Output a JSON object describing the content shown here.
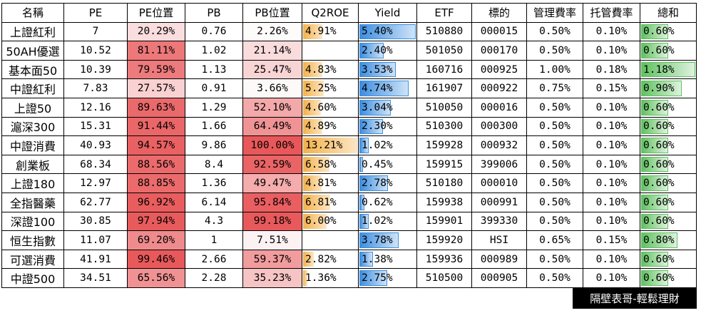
{
  "headers": [
    "名稱",
    "PE",
    "PE位置",
    "PB",
    "PB位置",
    "Q2ROE",
    "Yield",
    "ETF",
    "標的",
    "管理費率",
    "托管費率",
    "總和"
  ],
  "rows": [
    {
      "name": "上證紅利",
      "pe": "7",
      "pe_pos": "20.29%",
      "pe_pos_val": 20.29,
      "pb": "0.76",
      "pb_pos": "2.26%",
      "pb_pos_val": 2.26,
      "roe": "4.91%",
      "roe_val": 4.91,
      "yield": "5.40%",
      "yield_val": 5.4,
      "etf": "510880",
      "target": "000015",
      "mgmt_fee": "0.50%",
      "custody_fee": "0.10%",
      "total": "0.60%",
      "total_val": 0.6
    },
    {
      "name": "50AH優選",
      "pe": "10.52",
      "pe_pos": "81.11%",
      "pe_pos_val": 81.11,
      "pb": "1.02",
      "pb_pos": "21.14%",
      "pb_pos_val": 21.14,
      "roe": "",
      "roe_val": 0,
      "yield": "2.40%",
      "yield_val": 2.4,
      "etf": "501050",
      "target": "000170",
      "mgmt_fee": "0.50%",
      "custody_fee": "0.10%",
      "total": "0.60%",
      "total_val": 0.6
    },
    {
      "name": "基本面50",
      "pe": "10.39",
      "pe_pos": "79.59%",
      "pe_pos_val": 79.59,
      "pb": "1.13",
      "pb_pos": "25.47%",
      "pb_pos_val": 25.47,
      "roe": "4.83%",
      "roe_val": 4.83,
      "yield": "3.53%",
      "yield_val": 3.53,
      "etf": "160716",
      "target": "000925",
      "mgmt_fee": "1.00%",
      "custody_fee": "0.18%",
      "total": "1.18%",
      "total_val": 1.18
    },
    {
      "name": "中證紅利",
      "pe": "7.83",
      "pe_pos": "27.57%",
      "pe_pos_val": 27.57,
      "pb": "0.91",
      "pb_pos": "3.66%",
      "pb_pos_val": 3.66,
      "roe": "5.25%",
      "roe_val": 5.25,
      "yield": "4.74%",
      "yield_val": 4.74,
      "etf": "161907",
      "target": "000922",
      "mgmt_fee": "0.75%",
      "custody_fee": "0.15%",
      "total": "0.90%",
      "total_val": 0.9
    },
    {
      "name": "上證50",
      "pe": "12.16",
      "pe_pos": "89.63%",
      "pe_pos_val": 89.63,
      "pb": "1.29",
      "pb_pos": "52.10%",
      "pb_pos_val": 52.1,
      "roe": "4.60%",
      "roe_val": 4.6,
      "yield": "3.04%",
      "yield_val": 3.04,
      "etf": "510050",
      "target": "000016",
      "mgmt_fee": "0.50%",
      "custody_fee": "0.10%",
      "total": "0.60%",
      "total_val": 0.6
    },
    {
      "name": "滬深300",
      "pe": "15.31",
      "pe_pos": "91.44%",
      "pe_pos_val": 91.44,
      "pb": "1.66",
      "pb_pos": "64.49%",
      "pb_pos_val": 64.49,
      "roe": "4.89%",
      "roe_val": 4.89,
      "yield": "2.30%",
      "yield_val": 2.3,
      "etf": "510300",
      "target": "000300",
      "mgmt_fee": "0.50%",
      "custody_fee": "0.10%",
      "total": "0.60%",
      "total_val": 0.6
    },
    {
      "name": "中證消費",
      "pe": "40.93",
      "pe_pos": "94.57%",
      "pe_pos_val": 94.57,
      "pb": "9.86",
      "pb_pos": "100.00%",
      "pb_pos_val": 100.0,
      "roe": "13.21%",
      "roe_val": 13.21,
      "yield": "1.02%",
      "yield_val": 1.02,
      "etf": "159928",
      "target": "000932",
      "mgmt_fee": "0.50%",
      "custody_fee": "0.10%",
      "total": "0.60%",
      "total_val": 0.6
    },
    {
      "name": "創業板",
      "pe": "68.34",
      "pe_pos": "88.56%",
      "pe_pos_val": 88.56,
      "pb": "8.4",
      "pb_pos": "92.59%",
      "pb_pos_val": 92.59,
      "roe": "6.58%",
      "roe_val": 6.58,
      "yield": "0.45%",
      "yield_val": 0.45,
      "etf": "159915",
      "target": "399006",
      "mgmt_fee": "0.50%",
      "custody_fee": "0.10%",
      "total": "0.60%",
      "total_val": 0.6
    },
    {
      "name": "上證180",
      "pe": "12.97",
      "pe_pos": "88.85%",
      "pe_pos_val": 88.85,
      "pb": "1.36",
      "pb_pos": "49.47%",
      "pb_pos_val": 49.47,
      "roe": "4.81%",
      "roe_val": 4.81,
      "yield": "2.78%",
      "yield_val": 2.78,
      "etf": "510180",
      "target": "000010",
      "mgmt_fee": "0.50%",
      "custody_fee": "0.10%",
      "total": "0.60%",
      "total_val": 0.6
    },
    {
      "name": "全指醫藥",
      "pe": "62.77",
      "pe_pos": "96.92%",
      "pe_pos_val": 96.92,
      "pb": "6.14",
      "pb_pos": "95.84%",
      "pb_pos_val": 95.84,
      "roe": "6.81%",
      "roe_val": 6.81,
      "yield": "0.62%",
      "yield_val": 0.62,
      "etf": "159938",
      "target": "000991",
      "mgmt_fee": "0.50%",
      "custody_fee": "0.10%",
      "total": "0.60%",
      "total_val": 0.6
    },
    {
      "name": "深證100",
      "pe": "30.85",
      "pe_pos": "97.94%",
      "pe_pos_val": 97.94,
      "pb": "4.3",
      "pb_pos": "99.18%",
      "pb_pos_val": 99.18,
      "roe": "6.00%",
      "roe_val": 6.0,
      "yield": "1.02%",
      "yield_val": 1.02,
      "etf": "159901",
      "target": "399330",
      "mgmt_fee": "0.50%",
      "custody_fee": "0.10%",
      "total": "0.60%",
      "total_val": 0.6
    },
    {
      "name": "恒生指數",
      "pe": "11.07",
      "pe_pos": "69.20%",
      "pe_pos_val": 69.2,
      "pb": "1",
      "pb_pos": "7.51%",
      "pb_pos_val": 7.51,
      "roe": "",
      "roe_val": 0,
      "yield": "3.78%",
      "yield_val": 3.78,
      "etf": "159920",
      "target": "HSI",
      "mgmt_fee": "0.65%",
      "custody_fee": "0.15%",
      "total": "0.80%",
      "total_val": 0.8
    },
    {
      "name": "可選消費",
      "pe": "41.91",
      "pe_pos": "99.46%",
      "pe_pos_val": 99.46,
      "pb": "2.66",
      "pb_pos": "59.37%",
      "pb_pos_val": 59.37,
      "roe": "2.82%",
      "roe_val": 2.82,
      "yield": "1.38%",
      "yield_val": 1.38,
      "etf": "159936",
      "target": "000989",
      "mgmt_fee": "0.50%",
      "custody_fee": "0.10%",
      "total": "0.60%",
      "total_val": 0.6
    },
    {
      "name": "中證500",
      "pe": "34.51",
      "pe_pos": "65.56%",
      "pe_pos_val": 65.56,
      "pb": "2.28",
      "pb_pos": "35.23%",
      "pb_pos_val": 35.23,
      "roe": "1.36%",
      "roe_val": 1.36,
      "yield": "2.75%",
      "yield_val": 2.75,
      "etf": "510500",
      "target": "000905",
      "mgmt_fee": "0.50%",
      "custody_fee": "0.10%",
      "total": "0.60%",
      "total_val": 0.6
    }
  ],
  "scales": {
    "roe_max": 13.21,
    "yield_max": 5.4,
    "total_max": 1.18
  },
  "colors": {
    "heat_high": "#e8585a",
    "heat_low": "#ffffff",
    "roe_bar": "#f3b14a",
    "yield_bar": "#3d8ee0",
    "total_bar": "#5fc15f"
  },
  "footer": {
    "label": "隔壁表哥-輕鬆理財"
  }
}
